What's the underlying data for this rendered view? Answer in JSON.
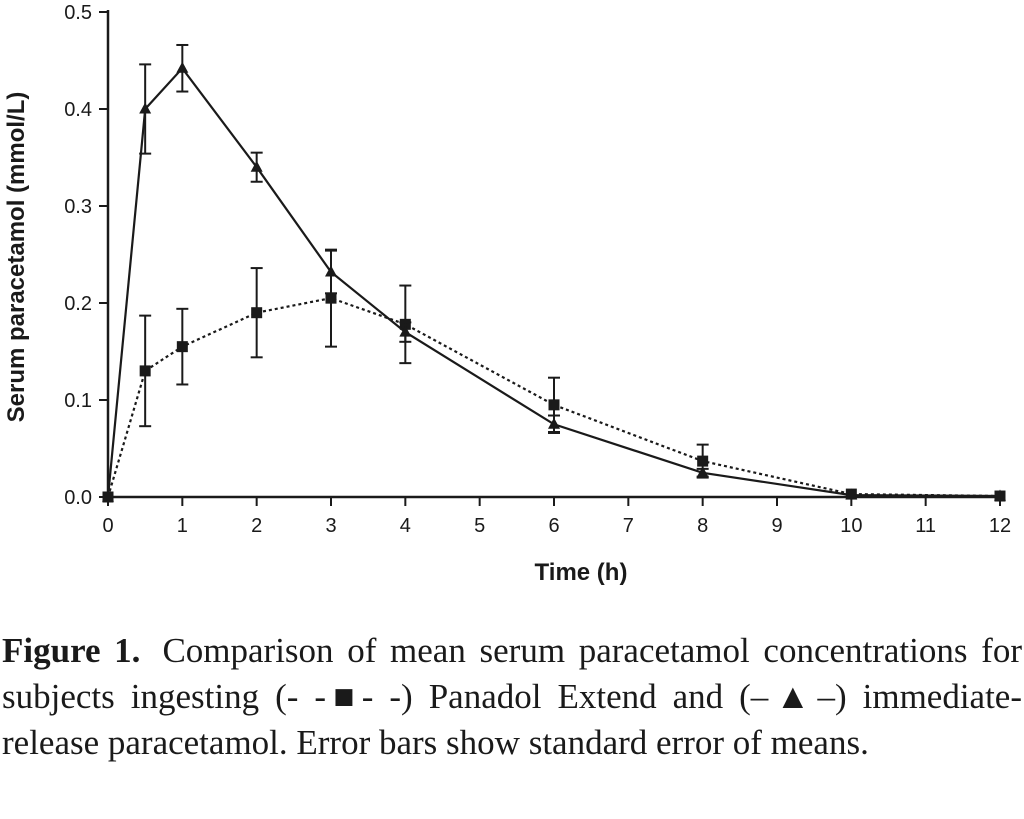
{
  "chart_data": {
    "type": "line",
    "xlabel": "Time (h)",
    "ylabel": "Serum paracetamol (mmol/L)",
    "xlim": [
      0,
      12
    ],
    "ylim": [
      0,
      0.5
    ],
    "x_ticks": [
      "0",
      "1",
      "2",
      "3",
      "4",
      "5",
      "6",
      "7",
      "8",
      "9",
      "10",
      "11",
      "12"
    ],
    "y_ticks": [
      "0.0",
      "0.1",
      "0.2",
      "0.3",
      "0.4",
      "0.5"
    ],
    "grid": false,
    "series": [
      {
        "name": "Panadol Extend",
        "marker": "square",
        "line_style": "dotted",
        "color": "#1a1a1a",
        "x": [
          0,
          0.5,
          1,
          2,
          3,
          4,
          6,
          8,
          10,
          12
        ],
        "y": [
          0.0,
          0.13,
          0.155,
          0.19,
          0.205,
          0.178,
          0.095,
          0.037,
          0.003,
          0.001
        ],
        "error": [
          0,
          0.057,
          0.039,
          0.046,
          0.05,
          0.04,
          0.028,
          0.017,
          0,
          0
        ]
      },
      {
        "name": "immediate-release paracetamol",
        "marker": "triangle",
        "line_style": "solid",
        "color": "#1a1a1a",
        "x": [
          0,
          0.5,
          1,
          2,
          3,
          4,
          6,
          8,
          10,
          12
        ],
        "y": [
          0.0,
          0.4,
          0.442,
          0.34,
          0.232,
          0.17,
          0.075,
          0.025,
          0.002,
          0.001
        ],
        "error": [
          0,
          0.046,
          0.024,
          0.015,
          0.022,
          0.01,
          0.009,
          0.004,
          0,
          0
        ]
      }
    ]
  },
  "caption": {
    "label": "Figure 1.",
    "text": "Comparison of mean serum paracetamol concentrations for subjects ingesting (- -■- -) Panadol Extend and (–▲–) immediate-release paracetamol. Error bars show standard error of means."
  }
}
